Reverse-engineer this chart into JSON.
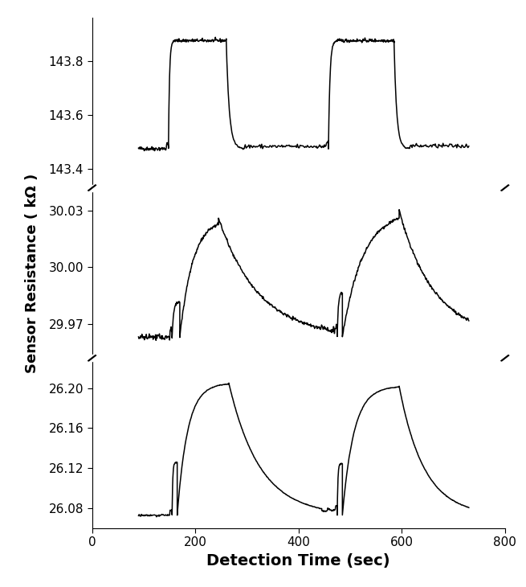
{
  "xlabel": "Detection Time (sec)",
  "ylabel": "Sensor Resistance ( kΩ )",
  "xlabel_fontsize": 14,
  "ylabel_fontsize": 13,
  "tick_fontsize": 11,
  "xmin": 0,
  "xmax": 800,
  "xticks": [
    0,
    200,
    400,
    600,
    800
  ],
  "background_color": "#ffffff",
  "panel1": {
    "ymin": 143.33,
    "ymax": 143.96,
    "yticks": [
      143.4,
      143.6,
      143.8
    ],
    "baseline": 143.475,
    "peak1": 143.875,
    "peak2": 143.875,
    "noise": 0.004,
    "seg1": {
      "t0": 90,
      "t1": 148
    },
    "seg2": {
      "t0": 148,
      "t1": 160,
      "tau": 8
    },
    "seg3": {
      "t0": 160,
      "t1": 260
    },
    "seg4": {
      "t0": 260,
      "t1": 295,
      "tau": 10
    },
    "seg5": {
      "t0": 295,
      "t1": 435
    },
    "seg6": {
      "t0": 435,
      "t1": 458
    },
    "seg7": {
      "t0": 458,
      "t1": 475,
      "tau": 8
    },
    "seg8": {
      "t0": 475,
      "t1": 585
    },
    "seg9": {
      "t0": 585,
      "t1": 615,
      "tau": 10
    },
    "seg10": {
      "t0": 615,
      "t1": 730
    }
  },
  "panel2": {
    "ymin": 29.952,
    "ymax": 30.042,
    "yticks": [
      29.97,
      30.0,
      30.03
    ],
    "baseline": 29.963,
    "peak1": 30.026,
    "peak2": 30.03,
    "noise": 0.0008,
    "seg1": {
      "t0": 90,
      "t1": 155
    },
    "seg2": {
      "t0": 155,
      "t1": 170,
      "tau": 5
    },
    "seg3": {
      "t0": 170,
      "t1": 245
    },
    "seg4": {
      "t0": 245,
      "t1": 440,
      "tau": 100
    },
    "seg5": {
      "t0": 440,
      "t1": 458
    },
    "seg6": {
      "t0": 458,
      "t1": 475
    },
    "seg7": {
      "t0": 475,
      "t1": 485,
      "tau": 5
    },
    "seg8": {
      "t0": 485,
      "t1": 595
    },
    "seg9": {
      "t0": 595,
      "t1": 730,
      "tau": 80
    },
    "seg10": {
      "t0": 730,
      "t1": 730
    }
  },
  "panel3": {
    "ymin": 26.06,
    "ymax": 26.23,
    "yticks": [
      26.08,
      26.12,
      26.16,
      26.2
    ],
    "baseline": 26.073,
    "peak1": 26.205,
    "peak2": 26.202,
    "noise": 0.0005,
    "seg1": {
      "t0": 90,
      "t1": 155
    },
    "seg2": {
      "t0": 155,
      "t1": 165,
      "tau": 5
    },
    "seg3": {
      "t0": 165,
      "t1": 265
    },
    "seg4": {
      "t0": 265,
      "t1": 445,
      "tau": 100
    },
    "seg5": {
      "t0": 445,
      "t1": 460
    },
    "seg6": {
      "t0": 460,
      "t1": 475
    },
    "seg7": {
      "t0": 475,
      "t1": 485,
      "tau": 5
    },
    "seg8": {
      "t0": 485,
      "t1": 595
    },
    "seg9": {
      "t0": 595,
      "t1": 730,
      "tau": 90
    },
    "seg10": {
      "t0": 730,
      "t1": 730
    }
  }
}
